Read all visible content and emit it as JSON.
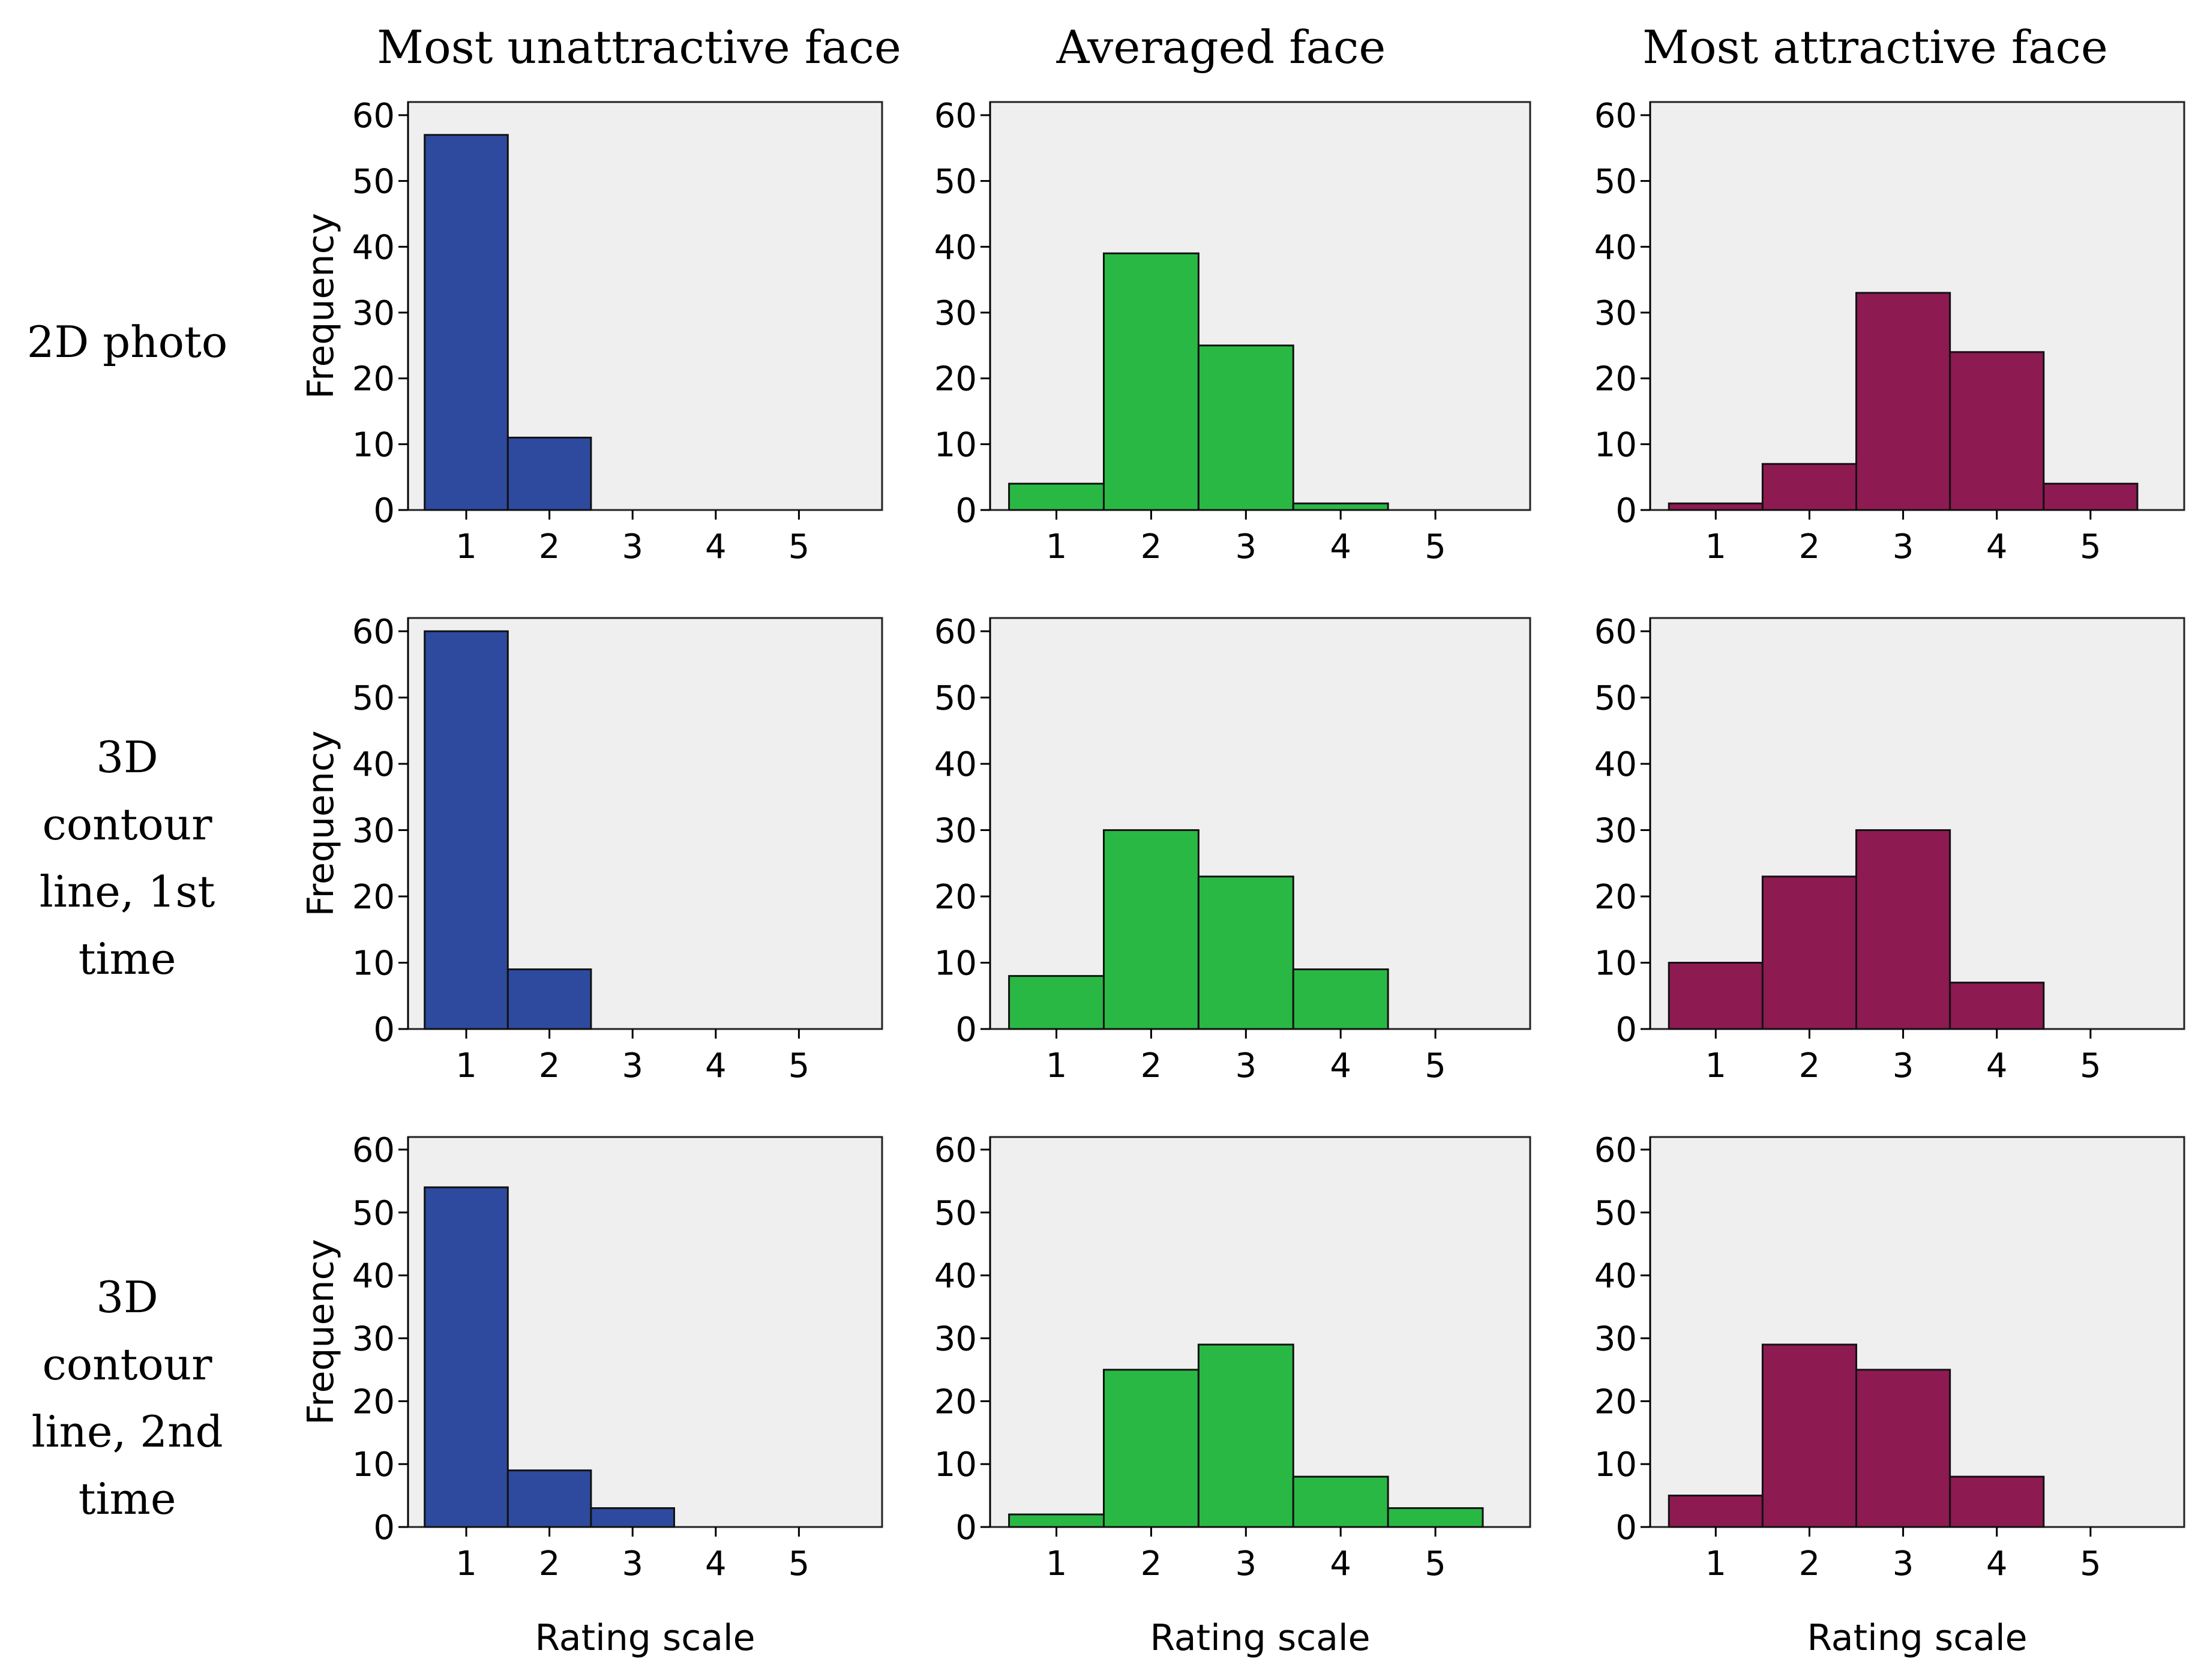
{
  "column_titles": [
    "Most unattractive face",
    "Averaged face",
    "Most attractive face"
  ],
  "row_labels": [
    [
      "2D photo"
    ],
    [
      "3D",
      "contour",
      "line, 1st",
      "time"
    ],
    [
      "3D",
      "contour",
      "line, 2nd",
      "time"
    ]
  ],
  "colors": {
    "unattractive": "#2e4a9e",
    "averaged": "#2ab845",
    "attractive": "#8e1a52",
    "plot_background": "#efefef"
  },
  "chart_data": {
    "type": "bar",
    "title": "",
    "xlabel": "Rating scale",
    "ylabel": "Frequency",
    "categories": [
      "1",
      "2",
      "3",
      "4",
      "5"
    ],
    "y_ticks": [
      "0",
      "10",
      "20",
      "30",
      "40",
      "50",
      "60"
    ],
    "ylim": [
      0,
      62
    ],
    "panels": [
      {
        "row": 0,
        "col": 0,
        "series": "unattractive",
        "values": [
          57,
          11,
          0,
          0,
          0
        ],
        "ylabel": "Frequency",
        "xlabel": ""
      },
      {
        "row": 0,
        "col": 1,
        "series": "averaged",
        "values": [
          4,
          39,
          25,
          1,
          0
        ],
        "ylabel": "",
        "xlabel": ""
      },
      {
        "row": 0,
        "col": 2,
        "series": "attractive",
        "values": [
          1,
          7,
          33,
          24,
          4
        ],
        "ylabel": "",
        "xlabel": ""
      },
      {
        "row": 1,
        "col": 0,
        "series": "unattractive",
        "values": [
          60,
          9,
          0,
          0,
          0
        ],
        "ylabel": "Frequency",
        "xlabel": ""
      },
      {
        "row": 1,
        "col": 1,
        "series": "averaged",
        "values": [
          8,
          30,
          23,
          9,
          0
        ],
        "ylabel": "",
        "xlabel": ""
      },
      {
        "row": 1,
        "col": 2,
        "series": "attractive",
        "values": [
          10,
          23,
          30,
          7,
          0
        ],
        "ylabel": "",
        "xlabel": ""
      },
      {
        "row": 2,
        "col": 0,
        "series": "unattractive",
        "values": [
          54,
          9,
          3,
          0,
          0
        ],
        "ylabel": "Frequency",
        "xlabel": "Rating scale"
      },
      {
        "row": 2,
        "col": 1,
        "series": "averaged",
        "values": [
          2,
          25,
          29,
          8,
          3
        ],
        "ylabel": "",
        "xlabel": "Rating scale"
      },
      {
        "row": 2,
        "col": 2,
        "series": "attractive",
        "values": [
          5,
          29,
          25,
          8,
          0
        ],
        "ylabel": "",
        "xlabel": "Rating scale"
      }
    ]
  }
}
